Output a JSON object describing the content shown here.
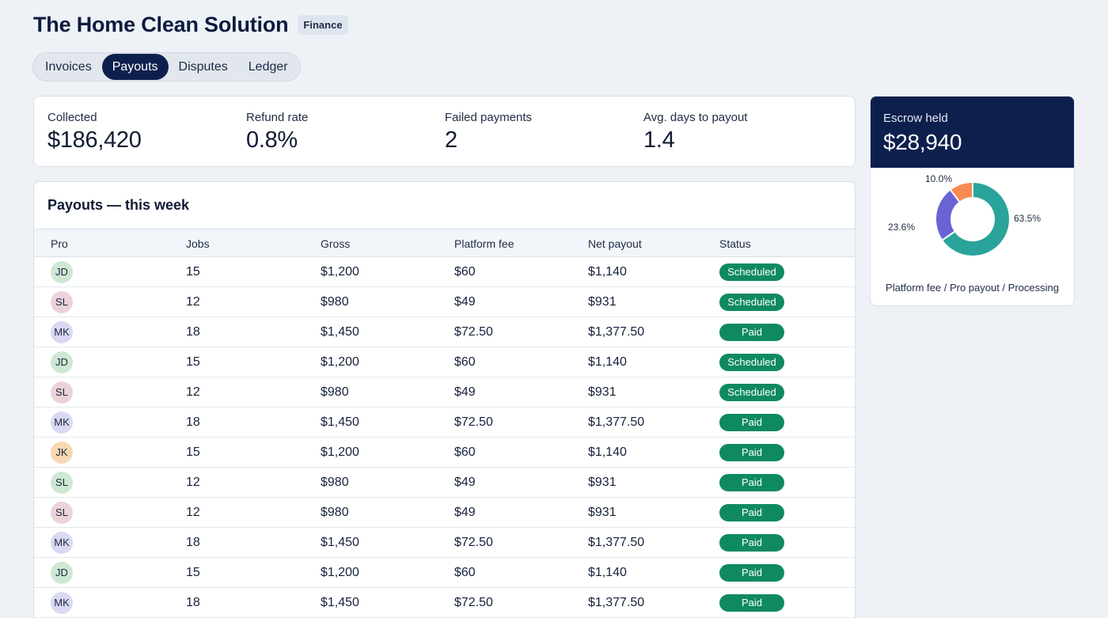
{
  "header": {
    "title": "The Home Clean Solution",
    "badge": "Finance"
  },
  "tabs": [
    {
      "label": "Invoices",
      "active": false
    },
    {
      "label": "Payouts",
      "active": true
    },
    {
      "label": "Disputes",
      "active": false
    },
    {
      "label": "Ledger",
      "active": false
    }
  ],
  "kpis": [
    {
      "label": "Collected",
      "value": "$186,420"
    },
    {
      "label": "Refund rate",
      "value": "0.8%"
    },
    {
      "label": "Failed payments",
      "value": "2"
    },
    {
      "label": "Avg. days to payout",
      "value": "1.4"
    }
  ],
  "payouts": {
    "title": "Payouts — this week",
    "columns": [
      "Pro",
      "Jobs",
      "Gross",
      "Platform fee",
      "Net payout",
      "Status"
    ],
    "rows": [
      {
        "pro": "JD",
        "jobs": "15",
        "gross": "$1,200",
        "fee": "$60",
        "net": "$1,140",
        "status": "Scheduled"
      },
      {
        "pro": "SL",
        "jobs": "12",
        "gross": "$980",
        "fee": "$49",
        "net": "$931",
        "status": "Scheduled"
      },
      {
        "pro": "MK",
        "jobs": "18",
        "gross": "$1,450",
        "fee": "$72.50",
        "net": "$1,377.50",
        "status": "Paid"
      },
      {
        "pro": "JD",
        "jobs": "15",
        "gross": "$1,200",
        "fee": "$60",
        "net": "$1,140",
        "status": "Scheduled"
      },
      {
        "pro": "SL",
        "jobs": "12",
        "gross": "$980",
        "fee": "$49",
        "net": "$931",
        "status": "Scheduled"
      },
      {
        "pro": "MK",
        "jobs": "18",
        "gross": "$1,450",
        "fee": "$72.50",
        "net": "$1,377.50",
        "status": "Paid"
      },
      {
        "pro": "JK",
        "jobs": "15",
        "gross": "$1,200",
        "fee": "$60",
        "net": "$1,140",
        "status": "Paid"
      },
      {
        "pro": "SL",
        "jobs": "12",
        "gross": "$980",
        "fee": "$49",
        "net": "$931",
        "status": "Paid"
      },
      {
        "pro": "SL",
        "jobs": "12",
        "gross": "$980",
        "fee": "$49",
        "net": "$931",
        "status": "Paid"
      },
      {
        "pro": "MK",
        "jobs": "18",
        "gross": "$1,450",
        "fee": "$72.50",
        "net": "$1,377.50",
        "status": "Paid"
      },
      {
        "pro": "JD",
        "jobs": "15",
        "gross": "$1,200",
        "fee": "$60",
        "net": "$1,140",
        "status": "Paid"
      },
      {
        "pro": "MK",
        "jobs": "18",
        "gross": "$1,450",
        "fee": "$72.50",
        "net": "$1,377.50",
        "status": "Paid"
      }
    ],
    "avatar_colors": [
      "#cfe8d4",
      "#ecd3d9",
      "#d9d9f3",
      "#cfe8d4",
      "#ecd3d9",
      "#d9d9f3",
      "#f7d9b2",
      "#cfe8d4",
      "#ecd3d9",
      "#d9d9f3",
      "#cfe8d4",
      "#d9d9f3"
    ]
  },
  "escrow": {
    "label": "Escrow held",
    "value": "$28,940",
    "legend": "Platform fee / Pro payout / Processing",
    "chart_data": {
      "type": "pie",
      "slices": [
        {
          "label": "63.5%",
          "value": 63.5,
          "color": "#2aa39a"
        },
        {
          "label": "23.6%",
          "value": 23.6,
          "color": "#6a63d4"
        },
        {
          "label": "10.0%",
          "value": 10.0,
          "color": "#f78a52"
        }
      ]
    }
  }
}
